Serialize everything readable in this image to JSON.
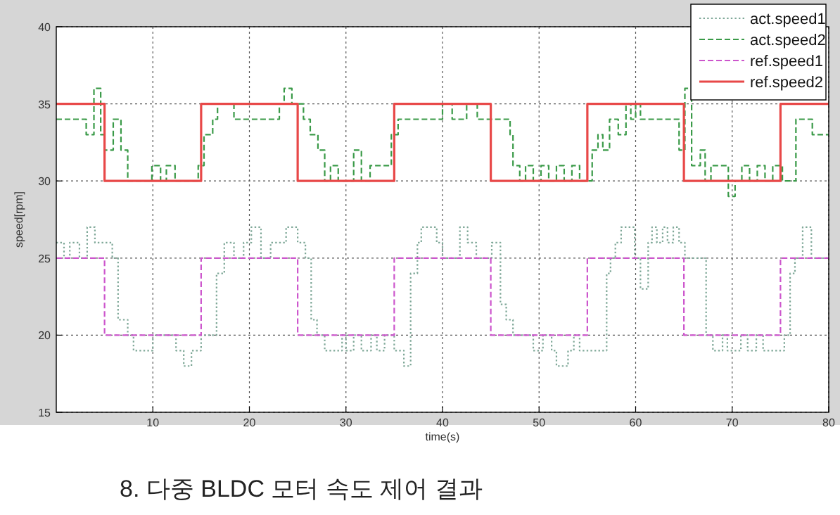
{
  "chart_data": {
    "type": "step",
    "xlabel": "time(s)",
    "ylabel": "speed[rpm]",
    "xlim": [
      0,
      80
    ],
    "xticks": [
      10,
      20,
      30,
      40,
      50,
      60,
      70,
      80
    ],
    "ylim": [
      15,
      40
    ],
    "yticks": [
      15,
      20,
      25,
      30,
      35,
      40
    ],
    "grid": true,
    "legend": "top right",
    "annotations": [
      "8. 다중 BLDC 모터 속도 제어 결과"
    ],
    "series": [
      {
        "name": "act.speed1",
        "color": "#7fa898",
        "line_style": "dotted",
        "x": [
          0,
          0.8,
          1.4,
          2.4,
          3.2,
          4.0,
          5.8,
          6.4,
          7.4,
          8.0,
          10.0,
          12.4,
          13.2,
          14.0,
          15.0,
          16.6,
          17.4,
          18.4,
          19.4,
          20.2,
          21.2,
          22.2,
          23.8,
          25.0,
          25.8,
          26.4,
          27.0,
          27.8,
          29.6,
          30.0,
          30.8,
          31.6,
          32.6,
          33.2,
          34.0,
          35.0,
          36.0,
          36.7,
          37.4,
          37.8,
          39.4,
          40.0,
          41.8,
          42.6,
          43.5,
          45.1,
          46.0,
          46.6,
          47.3,
          49.4,
          50.4,
          51.3,
          51.8,
          53.0,
          53.6,
          54.2,
          57.0,
          57.4,
          57.9,
          58.5,
          59.9,
          60.5,
          61.3,
          61.7,
          62.2,
          62.8,
          63.3,
          63.9,
          64.5,
          65.1,
          66.7,
          67.3,
          68.0,
          69.0,
          69.5,
          70.9,
          71.6,
          72.5,
          73.2,
          75.4,
          76.0,
          76.5,
          77.3,
          78.2,
          80
        ],
        "values": [
          26,
          25,
          26,
          25,
          27,
          26,
          25,
          21,
          20,
          19,
          20,
          19,
          18,
          19,
          20,
          24,
          26,
          25,
          26,
          27,
          25,
          26,
          27,
          26,
          25,
          21,
          20,
          19,
          20,
          19,
          20,
          19,
          20,
          19,
          20,
          19,
          18,
          24,
          26,
          27,
          26,
          25,
          27,
          26,
          25,
          26,
          22,
          21,
          20,
          19,
          20,
          19,
          18,
          19,
          20,
          19,
          24,
          25,
          26,
          27,
          25,
          23,
          26,
          27,
          26,
          27,
          26,
          27,
          26,
          25,
          25,
          20,
          19,
          20,
          19,
          20,
          19,
          20,
          19,
          20,
          24,
          25,
          27,
          25,
          25
        ]
      },
      {
        "name": "act.speed2",
        "color": "#3a9a48",
        "line_style": "dashed",
        "x": [
          0,
          3.1,
          3.9,
          4.6,
          5.0,
          5.9,
          6.7,
          7.4,
          9.9,
          10.8,
          11.4,
          12.3,
          14.7,
          15.3,
          16.2,
          16.7,
          18.4,
          23.1,
          23.6,
          24.4,
          25.3,
          25.6,
          26.3,
          27.1,
          27.8,
          28.4,
          29.2,
          30.8,
          31.6,
          32.5,
          34.7,
          35.4,
          40.0,
          41.0,
          42.5,
          43.6,
          47.0,
          47.3,
          48.0,
          48.6,
          49.4,
          50.2,
          51.0,
          51.8,
          52.6,
          53.4,
          54.2,
          55.5,
          56.1,
          56.6,
          57.3,
          58.2,
          59.0,
          59.5,
          60.0,
          60.5,
          64.5,
          65.1,
          65.8,
          66.7,
          67.2,
          67.8,
          69.6,
          70.3,
          71.0,
          71.8,
          72.6,
          73.4,
          74.2,
          75.2,
          76.6,
          78.3,
          80
        ],
        "values": [
          34,
          33,
          36,
          33,
          32,
          34,
          32,
          30,
          31,
          30,
          31,
          30,
          31,
          33,
          34,
          35,
          34,
          35,
          36,
          35,
          35,
          34,
          33,
          32,
          30,
          31,
          30,
          32,
          30,
          31,
          33,
          34,
          35,
          34,
          35,
          34,
          33,
          31,
          30,
          31,
          30,
          31,
          30,
          31,
          30,
          31,
          30,
          32,
          33,
          32,
          34,
          33,
          35,
          34,
          35,
          34,
          32,
          36,
          31,
          32,
          30,
          31,
          29,
          30,
          31,
          30,
          31,
          30,
          31,
          30,
          34,
          33,
          33
        ]
      },
      {
        "name": "ref.speed1",
        "color": "#cc55cc",
        "line_style": "dashed",
        "x": [
          0,
          5,
          15,
          25,
          35,
          45,
          55,
          65,
          75,
          80
        ],
        "values": [
          25,
          20,
          25,
          20,
          25,
          20,
          25,
          20,
          25,
          25
        ]
      },
      {
        "name": "ref.speed2",
        "color": "#e84848",
        "line_style": "solid",
        "x": [
          0,
          5,
          15,
          25,
          35,
          45,
          55,
          65,
          75,
          80
        ],
        "values": [
          35,
          30,
          35,
          30,
          35,
          30,
          35,
          30,
          35,
          35
        ]
      }
    ]
  }
}
